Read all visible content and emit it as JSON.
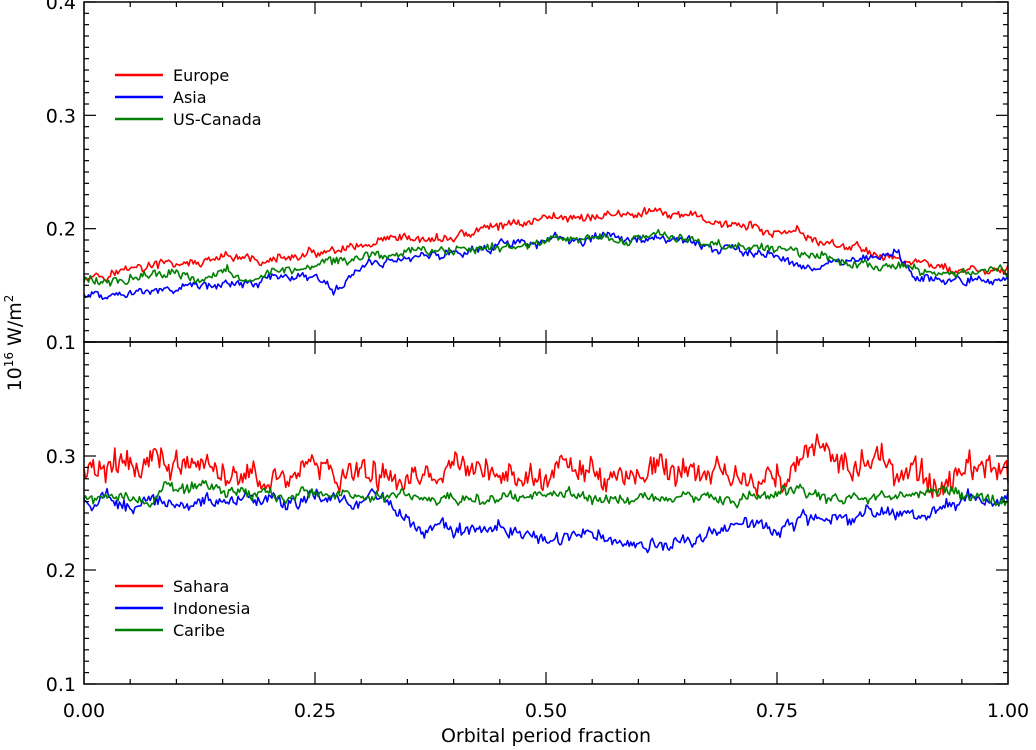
{
  "chart_data": [
    {
      "type": "line",
      "panel": "top",
      "x_range": [
        0,
        1
      ],
      "ylim": [
        0.1,
        0.4
      ],
      "yticks": [
        "0.1",
        "0.2",
        "0.3",
        "0.4"
      ],
      "legend_placement": "top-left",
      "series": [
        {
          "name": "Europe",
          "color": "#ff0000",
          "x": [
            0,
            0.05,
            0.1,
            0.15,
            0.2,
            0.25,
            0.3,
            0.35,
            0.4,
            0.45,
            0.5,
            0.55,
            0.6,
            0.65,
            0.7,
            0.75,
            0.8,
            0.85,
            0.9,
            0.95,
            1.0
          ],
          "y": [
            0.16,
            0.165,
            0.168,
            0.17,
            0.172,
            0.176,
            0.18,
            0.186,
            0.192,
            0.202,
            0.21,
            0.212,
            0.213,
            0.21,
            0.204,
            0.196,
            0.188,
            0.18,
            0.17,
            0.163,
            0.16
          ],
          "noise": 0.004
        },
        {
          "name": "Asia",
          "color": "#0000ff",
          "x": [
            0,
            0.05,
            0.1,
            0.15,
            0.2,
            0.25,
            0.27,
            0.3,
            0.35,
            0.4,
            0.45,
            0.5,
            0.55,
            0.6,
            0.65,
            0.7,
            0.75,
            0.8,
            0.85,
            0.88,
            0.9,
            0.95,
            1.0
          ],
          "y": [
            0.142,
            0.143,
            0.147,
            0.152,
            0.157,
            0.16,
            0.145,
            0.168,
            0.175,
            0.18,
            0.186,
            0.188,
            0.19,
            0.192,
            0.19,
            0.182,
            0.176,
            0.17,
            0.168,
            0.177,
            0.155,
            0.15,
            0.153
          ],
          "noise": 0.004
        },
        {
          "name": "US-Canada",
          "color": "#008000",
          "x": [
            0,
            0.05,
            0.1,
            0.15,
            0.2,
            0.25,
            0.3,
            0.35,
            0.4,
            0.45,
            0.5,
            0.55,
            0.6,
            0.65,
            0.7,
            0.75,
            0.8,
            0.85,
            0.9,
            0.95,
            1.0
          ],
          "y": [
            0.155,
            0.157,
            0.16,
            0.16,
            0.163,
            0.166,
            0.172,
            0.18,
            0.182,
            0.184,
            0.187,
            0.191,
            0.194,
            0.19,
            0.185,
            0.182,
            0.176,
            0.172,
            0.166,
            0.162,
            0.16
          ],
          "noise": 0.004
        }
      ]
    },
    {
      "type": "line",
      "panel": "bottom",
      "x_range": [
        0,
        1
      ],
      "ylim": [
        0.1,
        0.4
      ],
      "yticks": [
        "0.1",
        "0.2",
        "0.3"
      ],
      "legend_placement": "bottom-left",
      "series": [
        {
          "name": "Sahara",
          "color": "#ff0000",
          "x": [
            0,
            0.05,
            0.08,
            0.1,
            0.15,
            0.2,
            0.25,
            0.3,
            0.35,
            0.4,
            0.45,
            0.5,
            0.55,
            0.6,
            0.65,
            0.7,
            0.75,
            0.8,
            0.85,
            0.9,
            0.95,
            1.0
          ],
          "y": [
            0.285,
            0.29,
            0.298,
            0.292,
            0.28,
            0.283,
            0.288,
            0.285,
            0.28,
            0.285,
            0.288,
            0.285,
            0.282,
            0.278,
            0.28,
            0.282,
            0.288,
            0.292,
            0.294,
            0.285,
            0.283,
            0.285
          ],
          "noise": 0.012
        },
        {
          "name": "Indonesia",
          "color": "#0000ff",
          "x": [
            0,
            0.05,
            0.1,
            0.15,
            0.2,
            0.25,
            0.3,
            0.35,
            0.4,
            0.45,
            0.5,
            0.55,
            0.6,
            0.65,
            0.7,
            0.75,
            0.8,
            0.85,
            0.9,
            0.95,
            1.0
          ],
          "y": [
            0.262,
            0.258,
            0.26,
            0.264,
            0.255,
            0.266,
            0.262,
            0.248,
            0.236,
            0.235,
            0.225,
            0.228,
            0.222,
            0.224,
            0.236,
            0.24,
            0.245,
            0.25,
            0.252,
            0.26,
            0.262
          ],
          "noise": 0.006
        },
        {
          "name": "Caribe",
          "color": "#008000",
          "x": [
            0,
            0.05,
            0.1,
            0.15,
            0.2,
            0.25,
            0.3,
            0.35,
            0.4,
            0.45,
            0.5,
            0.55,
            0.6,
            0.65,
            0.7,
            0.75,
            0.8,
            0.85,
            0.9,
            0.95,
            1.0
          ],
          "y": [
            0.265,
            0.268,
            0.27,
            0.272,
            0.27,
            0.268,
            0.265,
            0.262,
            0.26,
            0.265,
            0.262,
            0.262,
            0.262,
            0.26,
            0.262,
            0.265,
            0.264,
            0.262,
            0.268,
            0.265,
            0.262
          ],
          "noise": 0.005
        }
      ]
    }
  ],
  "axes": {
    "xticks": [
      "0.00",
      "0.25",
      "0.50",
      "0.75",
      "1.00"
    ],
    "xlabel": "Orbital period fraction",
    "ylabel_base": "10",
    "ylabel_exp": "16",
    "ylabel_unit": " W/m",
    "ylabel_unit_exp": "2"
  }
}
